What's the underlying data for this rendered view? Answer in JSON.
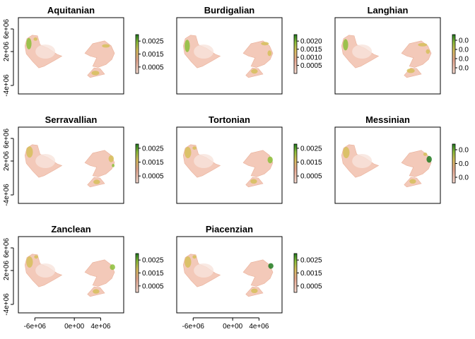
{
  "chart_data": {
    "type": "heatmap",
    "description_units": "projected coordinates (m)",
    "layout": "3x3 panel grid",
    "panels": [
      {
        "title": "Aquitanian",
        "legend_ticks": [
          "0.0025",
          "0.0015",
          "0.0005"
        ],
        "legend_range": [
          0,
          0.003
        ],
        "show_yaxis": true,
        "show_xaxis": false
      },
      {
        "title": "Burdigalian",
        "legend_ticks": [
          "0.0020",
          "0.0015",
          "0.0010",
          "0.0005"
        ],
        "legend_range": [
          0,
          0.0024
        ],
        "show_yaxis": false,
        "show_xaxis": false
      },
      {
        "title": "Langhian",
        "legend_ticks": [
          "0.0",
          "0.0",
          "0.0",
          "0.0"
        ],
        "legend_range": [
          0,
          0.0024
        ],
        "show_yaxis": false,
        "show_xaxis": false
      },
      {
        "title": "Serravallian",
        "legend_ticks": [
          "0.0025",
          "0.0015",
          "0.0005"
        ],
        "legend_range": [
          0,
          0.0028
        ],
        "show_yaxis": true,
        "show_xaxis": false
      },
      {
        "title": "Tortonian",
        "legend_ticks": [
          "0.0025",
          "0.0015",
          "0.0005"
        ],
        "legend_range": [
          0,
          0.0028
        ],
        "show_yaxis": false,
        "show_xaxis": false
      },
      {
        "title": "Messinian",
        "legend_ticks": [
          "0.0",
          "0.0",
          "0.0"
        ],
        "legend_range": [
          0,
          0.0028
        ],
        "show_yaxis": false,
        "show_xaxis": false
      },
      {
        "title": "Zanclean",
        "legend_ticks": [
          "0.0025",
          "0.0015",
          "0.0005"
        ],
        "legend_range": [
          0,
          0.003
        ],
        "show_yaxis": true,
        "show_xaxis": true
      },
      {
        "title": "Piacenzian",
        "legend_ticks": [
          "0.0025",
          "0.0015",
          "0.0005"
        ],
        "legend_range": [
          0,
          0.003
        ],
        "show_yaxis": false,
        "show_xaxis": true
      }
    ],
    "y_axis": {
      "ticks": [
        -4000000,
        2000000,
        6000000
      ],
      "tick_labels": [
        "-4e+06",
        "2e+06",
        "6e+06"
      ],
      "range": [
        -5500000,
        8000000
      ]
    },
    "x_axis": {
      "ticks": [
        -6000000,
        0,
        4000000
      ],
      "tick_labels": [
        "-6e+06",
        "0e+00",
        "4e+06"
      ],
      "range": [
        -8500000,
        7500000
      ]
    },
    "colors": {
      "low": "#f2c4b2",
      "mid_low": "#e8a88f",
      "mid": "#d6c05a",
      "high": "#8cbf3a",
      "top": "#1e7a1e",
      "legend_bottom": "#f7dcd2"
    }
  }
}
